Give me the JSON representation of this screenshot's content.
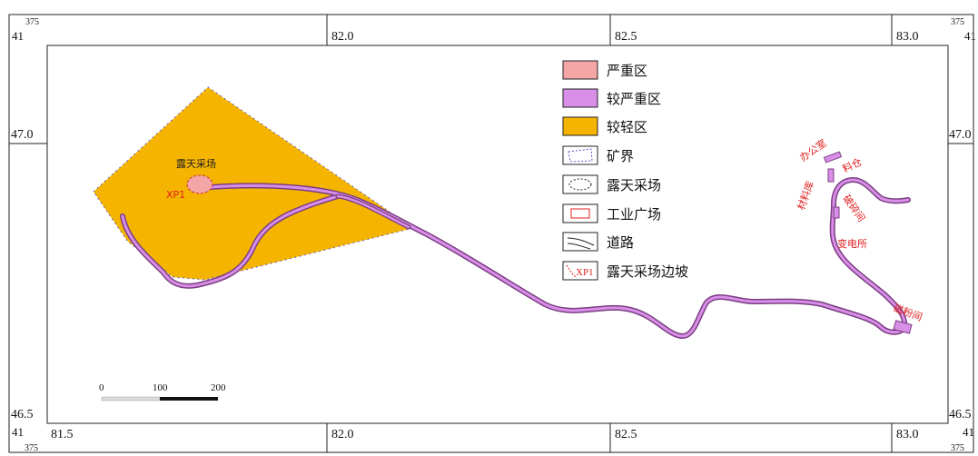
{
  "frame": {
    "corner_tl": [
      "375",
      "41"
    ],
    "corner_tr": [
      "375",
      "41"
    ],
    "corner_bl": [
      "41",
      "375"
    ],
    "corner_br": [
      "41",
      "375"
    ],
    "top_ticks": [
      "82.0",
      "82.5",
      "83.0"
    ],
    "bottom_ticks": [
      "81.5",
      "82.0",
      "82.5",
      "83.0"
    ],
    "left_ticks": [
      "47.0",
      "46.5"
    ],
    "right_ticks": [
      "47.0",
      "46.5"
    ]
  },
  "legend": [
    {
      "key": "severe",
      "label": "严重区",
      "swatch": "#f4a6a6"
    },
    {
      "key": "moderate",
      "label": "较严重区",
      "swatch": "#d98ee8"
    },
    {
      "key": "light",
      "label": "较轻区",
      "swatch": "#f5b400"
    },
    {
      "key": "boundary",
      "label": "矿界"
    },
    {
      "key": "pit",
      "label": "露天采场"
    },
    {
      "key": "industrial",
      "label": "工业广场"
    },
    {
      "key": "road",
      "label": "道路"
    },
    {
      "key": "slope",
      "label": "露天采场边坡",
      "icon_text": "XP1"
    }
  ],
  "map_labels": {
    "pit_name": "露天采场",
    "slope_id": "XP1",
    "office": "办公室",
    "warehouse": "料仓",
    "material_shed": "材料库",
    "crushing_room": "破碎间",
    "substation": "变电所",
    "grinding_room": "磁粉间"
  },
  "scale_bar": {
    "labels": [
      "0",
      "100",
      "200"
    ]
  },
  "colors": {
    "light_zone": "#f5b400",
    "moderate_zone": "#d98ee8",
    "severe_zone": "#f4a6a6",
    "road_outline": "#7a3f82",
    "label_red": "#e02020",
    "boundary_dots": "#5a55c8"
  }
}
